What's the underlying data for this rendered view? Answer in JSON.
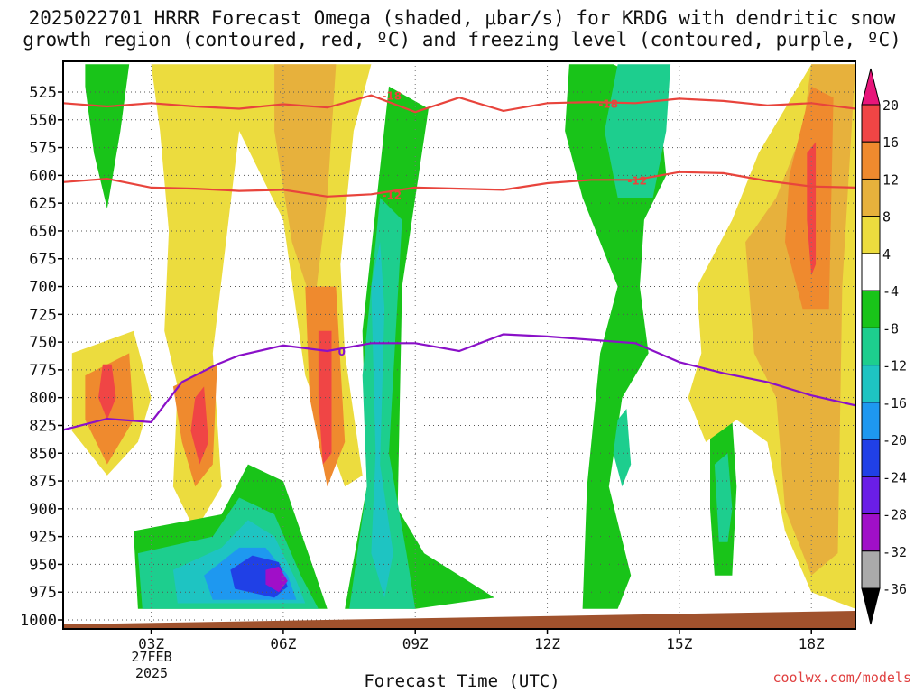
{
  "title_line1": "2025022701 HRRR Forecast Omega (shaded, μbar/s) for KRDG with dendritic snow",
  "title_line2": "growth region (contoured, red, ºC) and freezing level (contoured, purple, ºC)",
  "credit": "coolwx.com/models",
  "chart_data": {
    "type": "heatmap",
    "title": "2025022701 HRRR Forecast Omega (shaded, μbar/s) for KRDG with dendritic snow growth region (contoured, red, ºC) and freezing level (contoured, purple, ºC)",
    "xlabel": "Forecast Time (UTC)",
    "ylabel": "",
    "x_ticks": [
      "03Z",
      "06Z",
      "09Z",
      "12Z",
      "15Z",
      "18Z"
    ],
    "x_tick_hours": [
      3,
      6,
      9,
      12,
      15,
      18
    ],
    "x_range_hours": [
      1,
      19
    ],
    "date_label": [
      "27FEB",
      "2025"
    ],
    "y_ticks": [
      525,
      550,
      575,
      600,
      625,
      650,
      675,
      700,
      725,
      750,
      775,
      800,
      825,
      850,
      875,
      900,
      925,
      950,
      975,
      1000
    ],
    "y_range_hpa": [
      500,
      1000
    ],
    "grid": true,
    "colorbar": {
      "labels": [
        "20",
        "16",
        "12",
        "8",
        "4",
        "-4",
        "-8",
        "-12",
        "-16",
        "-20",
        "-24",
        "-28",
        "-32",
        "-36"
      ],
      "colors": [
        "#e8157a",
        "#f04545",
        "#ef8a2e",
        "#e7b13c",
        "#ecdc3e",
        "#ffffff",
        "#19c419",
        "#1dce8e",
        "#1ec4c2",
        "#1e98f0",
        "#2040e6",
        "#6a1ee6",
        "#a00fc8",
        "#aaaaaa",
        "#000000"
      ]
    },
    "contours": [
      {
        "label": "-18",
        "color": "#e8443c",
        "points": [
          [
            1,
            535
          ],
          [
            2,
            538
          ],
          [
            3,
            535
          ],
          [
            4,
            538
          ],
          [
            5,
            540
          ],
          [
            6,
            536
          ],
          [
            7,
            539
          ],
          [
            8,
            528
          ],
          [
            9,
            543
          ],
          [
            10,
            530
          ],
          [
            11,
            542
          ],
          [
            12,
            535
          ],
          [
            13,
            534
          ],
          [
            14,
            535
          ],
          [
            15,
            531
          ],
          [
            16,
            533
          ],
          [
            17,
            537
          ],
          [
            18,
            535
          ],
          [
            19,
            540
          ]
        ]
      },
      {
        "label": "-12",
        "color": "#e8443c",
        "points": [
          [
            1,
            606
          ],
          [
            2,
            603
          ],
          [
            3,
            611
          ],
          [
            4,
            612
          ],
          [
            5,
            614
          ],
          [
            6,
            613
          ],
          [
            7,
            619
          ],
          [
            8,
            617
          ],
          [
            9,
            611
          ],
          [
            10,
            612
          ],
          [
            11,
            613
          ],
          [
            12,
            607
          ],
          [
            13,
            604
          ],
          [
            14,
            604
          ],
          [
            15,
            597
          ],
          [
            16,
            598
          ],
          [
            17,
            605
          ],
          [
            18,
            610
          ],
          [
            19,
            611
          ]
        ]
      },
      {
        "label": "0",
        "color": "#8a10c8",
        "points": [
          [
            1,
            829
          ],
          [
            2,
            819
          ],
          [
            3,
            822
          ],
          [
            3.7,
            786
          ],
          [
            4.5,
            770
          ],
          [
            5,
            762
          ],
          [
            6,
            753
          ],
          [
            7,
            758
          ],
          [
            8,
            751
          ],
          [
            9,
            751
          ],
          [
            10,
            758
          ],
          [
            11,
            743
          ],
          [
            12,
            745
          ],
          [
            13,
            748
          ],
          [
            14,
            751
          ],
          [
            15,
            768
          ],
          [
            16,
            778
          ],
          [
            17,
            786
          ],
          [
            18,
            798
          ],
          [
            19,
            807
          ]
        ]
      }
    ],
    "shaded_regions": [
      {
        "level": "-4",
        "color": "#19c419",
        "points": [
          [
            1.5,
            500
          ],
          [
            2.5,
            500
          ],
          [
            2.3,
            560
          ],
          [
            2,
            630
          ],
          [
            1.7,
            580
          ],
          [
            1.5,
            520
          ]
        ]
      },
      {
        "level": "4",
        "color": "#ecdc3e",
        "points": [
          [
            3,
            500
          ],
          [
            8,
            500
          ],
          [
            7.6,
            560
          ],
          [
            7.3,
            680
          ],
          [
            7.4,
            760
          ],
          [
            7.8,
            870
          ],
          [
            7.4,
            880
          ],
          [
            6.5,
            780
          ],
          [
            6,
            640
          ],
          [
            5,
            560
          ],
          [
            4.4,
            760
          ],
          [
            4.6,
            880
          ],
          [
            4,
            920
          ],
          [
            3.5,
            880
          ],
          [
            3.6,
            790
          ],
          [
            3.3,
            740
          ],
          [
            3.4,
            650
          ],
          [
            3.2,
            560
          ]
        ]
      },
      {
        "level": "8",
        "color": "#e7b13c",
        "points": [
          [
            5.8,
            500
          ],
          [
            7.2,
            500
          ],
          [
            7,
            620
          ],
          [
            6.7,
            720
          ],
          [
            6.2,
            660
          ],
          [
            5.8,
            560
          ]
        ]
      },
      {
        "level": "4",
        "color": "#ecdc3e",
        "points": [
          [
            1.2,
            760
          ],
          [
            2.6,
            740
          ],
          [
            3,
            800
          ],
          [
            2.7,
            840
          ],
          [
            2,
            870
          ],
          [
            1.2,
            830
          ]
        ]
      },
      {
        "level": "12",
        "color": "#ef8a2e",
        "points": [
          [
            1.5,
            780
          ],
          [
            2.5,
            760
          ],
          [
            2.6,
            820
          ],
          [
            2,
            860
          ],
          [
            1.5,
            820
          ]
        ]
      },
      {
        "level": "16",
        "color": "#f04545",
        "points": [
          [
            1.9,
            770
          ],
          [
            2.1,
            770
          ],
          [
            2.2,
            800
          ],
          [
            2,
            820
          ],
          [
            1.8,
            800
          ]
        ]
      },
      {
        "level": "12",
        "color": "#ef8a2e",
        "points": [
          [
            3.5,
            790
          ],
          [
            4.5,
            770
          ],
          [
            4.4,
            860
          ],
          [
            4,
            880
          ],
          [
            3.7,
            840
          ]
        ]
      },
      {
        "level": "16",
        "color": "#f04545",
        "points": [
          [
            4,
            800
          ],
          [
            4.2,
            790
          ],
          [
            4.3,
            840
          ],
          [
            4.1,
            860
          ],
          [
            3.9,
            830
          ]
        ]
      },
      {
        "level": "12",
        "color": "#ef8a2e",
        "points": [
          [
            6.5,
            700
          ],
          [
            7.2,
            700
          ],
          [
            7.4,
            840
          ],
          [
            7,
            880
          ],
          [
            6.6,
            800
          ]
        ]
      },
      {
        "level": "16",
        "color": "#f04545",
        "points": [
          [
            6.8,
            740
          ],
          [
            7.1,
            740
          ],
          [
            7.1,
            850
          ],
          [
            6.9,
            860
          ],
          [
            6.8,
            800
          ]
        ]
      },
      {
        "level": "-4",
        "color": "#19c419",
        "points": [
          [
            7.8,
            740
          ],
          [
            8.4,
            520
          ],
          [
            9.3,
            540
          ],
          [
            8.7,
            700
          ],
          [
            8.6,
            900
          ],
          [
            9.2,
            940
          ],
          [
            10.8,
            980
          ],
          [
            9,
            990
          ],
          [
            7.4,
            990
          ],
          [
            7.9,
            880
          ]
        ]
      },
      {
        "level": "-8",
        "color": "#1dce8e",
        "points": [
          [
            7.8,
            780
          ],
          [
            8.2,
            620
          ],
          [
            8.7,
            640
          ],
          [
            8.4,
            850
          ],
          [
            8.8,
            940
          ],
          [
            9,
            990
          ],
          [
            7.5,
            990
          ],
          [
            7.9,
            880
          ]
        ]
      },
      {
        "level": "-12",
        "color": "#1ec4c2",
        "points": [
          [
            8,
            700
          ],
          [
            8.2,
            660
          ],
          [
            8.3,
            720
          ],
          [
            8.2,
            860
          ],
          [
            8.5,
            940
          ],
          [
            8.3,
            980
          ],
          [
            8,
            940
          ],
          [
            8.1,
            850
          ]
        ]
      },
      {
        "level": "-4",
        "color": "#19c419",
        "points": [
          [
            2.6,
            920
          ],
          [
            4.6,
            905
          ],
          [
            5.2,
            860
          ],
          [
            6,
            875
          ],
          [
            6.7,
            955
          ],
          [
            7,
            990
          ],
          [
            2.7,
            990
          ]
        ]
      },
      {
        "level": "-8",
        "color": "#1dce8e",
        "points": [
          [
            2.7,
            940
          ],
          [
            4.4,
            925
          ],
          [
            5,
            890
          ],
          [
            5.8,
            905
          ],
          [
            6.4,
            960
          ],
          [
            6.8,
            990
          ],
          [
            2.8,
            990
          ]
        ]
      },
      {
        "level": "-12",
        "color": "#1ec4c2",
        "points": [
          [
            3.5,
            955
          ],
          [
            4.6,
            935
          ],
          [
            5.2,
            910
          ],
          [
            5.8,
            925
          ],
          [
            6.3,
            965
          ],
          [
            6.5,
            985
          ],
          [
            3.6,
            985
          ]
        ]
      },
      {
        "level": "-16",
        "color": "#1e98f0",
        "points": [
          [
            4.2,
            960
          ],
          [
            5,
            935
          ],
          [
            5.6,
            935
          ],
          [
            6.1,
            960
          ],
          [
            6.3,
            982
          ],
          [
            4.4,
            982
          ]
        ]
      },
      {
        "level": "-20",
        "color": "#2040e6",
        "points": [
          [
            4.8,
            955
          ],
          [
            5.3,
            942
          ],
          [
            5.9,
            948
          ],
          [
            6.1,
            970
          ],
          [
            5.8,
            980
          ],
          [
            4.9,
            972
          ]
        ]
      },
      {
        "level": "-28",
        "color": "#a00fc8",
        "points": [
          [
            5.6,
            955
          ],
          [
            5.9,
            952
          ],
          [
            6.1,
            965
          ],
          [
            5.9,
            975
          ],
          [
            5.6,
            968
          ]
        ]
      },
      {
        "level": "-4",
        "color": "#19c419",
        "points": [
          [
            12.5,
            500
          ],
          [
            13.5,
            500
          ],
          [
            14.5,
            520
          ],
          [
            14.7,
            600
          ],
          [
            14.2,
            640
          ],
          [
            14.1,
            700
          ],
          [
            14.3,
            760
          ],
          [
            13.7,
            800
          ],
          [
            13.4,
            880
          ],
          [
            13.9,
            960
          ],
          [
            13.6,
            990
          ],
          [
            12.8,
            990
          ],
          [
            12.9,
            880
          ],
          [
            13.2,
            760
          ],
          [
            13.6,
            700
          ],
          [
            12.8,
            620
          ],
          [
            12.4,
            560
          ]
        ]
      },
      {
        "level": "-8",
        "color": "#1dce8e",
        "points": [
          [
            13.6,
            500
          ],
          [
            14.8,
            500
          ],
          [
            14.7,
            560
          ],
          [
            14.4,
            620
          ],
          [
            13.6,
            620
          ],
          [
            13.3,
            560
          ]
        ]
      },
      {
        "level": "-8",
        "color": "#1dce8e",
        "points": [
          [
            13.6,
            820
          ],
          [
            13.8,
            810
          ],
          [
            13.9,
            860
          ],
          [
            13.7,
            880
          ],
          [
            13.5,
            850
          ]
        ]
      },
      {
        "level": "-4",
        "color": "#19c419",
        "points": [
          [
            15.7,
            830
          ],
          [
            16.2,
            820
          ],
          [
            16.3,
            880
          ],
          [
            16.2,
            960
          ],
          [
            15.8,
            960
          ],
          [
            15.7,
            900
          ]
        ]
      },
      {
        "level": "-8",
        "color": "#1dce8e",
        "points": [
          [
            15.8,
            860
          ],
          [
            16.1,
            850
          ],
          [
            16.2,
            900
          ],
          [
            16.1,
            930
          ],
          [
            15.9,
            930
          ]
        ]
      },
      {
        "level": "4",
        "color": "#ecdc3e",
        "points": [
          [
            15.4,
            700
          ],
          [
            16.2,
            640
          ],
          [
            16.8,
            580
          ],
          [
            17.7,
            520
          ],
          [
            18,
            500
          ],
          [
            19,
            500
          ],
          [
            19,
            990
          ],
          [
            18,
            975
          ],
          [
            17.4,
            920
          ],
          [
            17,
            840
          ],
          [
            16.3,
            820
          ],
          [
            15.6,
            840
          ],
          [
            15.2,
            800
          ],
          [
            15.5,
            760
          ]
        ]
      },
      {
        "level": "8",
        "color": "#e7b13c",
        "points": [
          [
            16.5,
            660
          ],
          [
            17.2,
            620
          ],
          [
            17.8,
            560
          ],
          [
            18,
            500
          ],
          [
            19,
            500
          ],
          [
            18.7,
            700
          ],
          [
            18.6,
            940
          ],
          [
            18,
            960
          ],
          [
            17.4,
            900
          ],
          [
            17.2,
            800
          ],
          [
            16.7,
            760
          ]
        ]
      },
      {
        "level": "12",
        "color": "#ef8a2e",
        "points": [
          [
            17.5,
            600
          ],
          [
            18,
            520
          ],
          [
            18.5,
            530
          ],
          [
            18.4,
            720
          ],
          [
            17.8,
            720
          ],
          [
            17.4,
            660
          ]
        ]
      },
      {
        "level": "16",
        "color": "#f04545",
        "points": [
          [
            17.9,
            580
          ],
          [
            18.1,
            570
          ],
          [
            18.1,
            680
          ],
          [
            18,
            690
          ],
          [
            17.9,
            640
          ]
        ]
      }
    ]
  }
}
